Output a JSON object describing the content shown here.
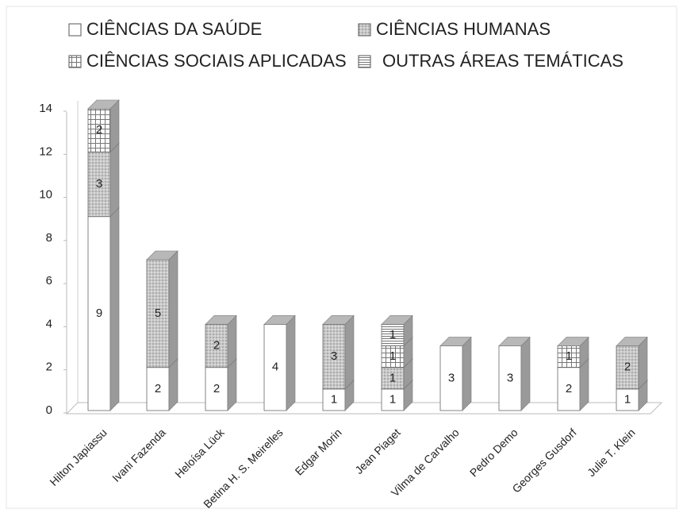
{
  "chart_data": {
    "type": "bar3d_stacked",
    "categories": [
      "Hilton Japiassu",
      "Ivani Fazenda",
      "Heloísa Lück",
      "Betina H. S. Meirelles",
      "Edgar Morin",
      "Jean Piaget",
      "Vilma de Carvalho",
      "Pedro Demo",
      "Georges Gusdorf",
      "Julie T. Klein"
    ],
    "series": [
      {
        "name": "CIÊNCIAS DA SAÚDE",
        "color": "#ffffff",
        "pattern": "none",
        "values": [
          9,
          2,
          2,
          4,
          1,
          1,
          3,
          3,
          2,
          1
        ]
      },
      {
        "name": "CIÊNCIAS HUMANAS",
        "color": "#c8c8c8",
        "pattern": "dots",
        "values": [
          3,
          5,
          2,
          0,
          3,
          1,
          0,
          0,
          0,
          2
        ]
      },
      {
        "name": "CIÊNCIAS SOCIAIS APLICADAS",
        "color": "#ffffff",
        "pattern": "grid",
        "values": [
          2,
          0,
          0,
          0,
          0,
          1,
          0,
          0,
          1,
          0
        ]
      },
      {
        "name": "OUTRAS ÁREAS TEMÁTICAS",
        "color": "#ffffff",
        "pattern": "lines",
        "values": [
          0,
          0,
          0,
          0,
          0,
          1,
          0,
          0,
          0,
          0
        ]
      }
    ],
    "ylim": [
      0,
      14
    ],
    "yticks": [
      0,
      2,
      4,
      6,
      8,
      10,
      12,
      14
    ],
    "grid": false
  }
}
